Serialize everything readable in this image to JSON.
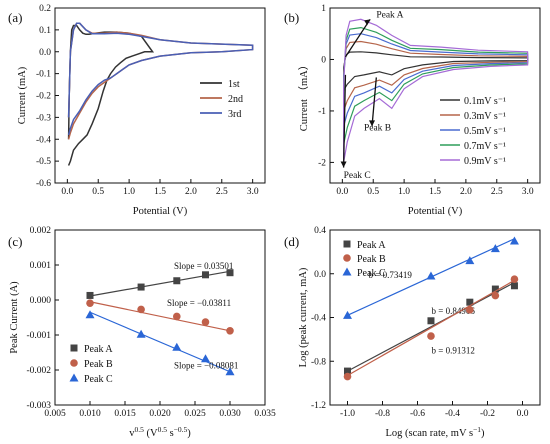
{
  "chart_data": [
    {
      "panel": "(a)",
      "type": "line",
      "xlabel": "Potential (V)",
      "ylabel": "Current (mA)",
      "xlim": [
        -0.2,
        3.2
      ],
      "ylim": [
        -0.6,
        0.2
      ],
      "xticks": [
        "0.0",
        "0.5",
        "1.0",
        "1.5",
        "2.0",
        "2.5",
        "3.0"
      ],
      "yticks": [
        "-0.6",
        "-0.5",
        "-0.4",
        "-0.3",
        "-0.2",
        "-0.1",
        "0.0",
        "0.1",
        "0.2"
      ],
      "legend_position": "center-right",
      "series": [
        {
          "name": "1st",
          "color": "#333333",
          "x": [
            0.02,
            0.05,
            0.1,
            0.18,
            0.25,
            0.32,
            0.4,
            0.5,
            0.58,
            0.64,
            0.7,
            0.78,
            0.86,
            0.95,
            1.05,
            1.15,
            1.25,
            1.38,
            1.2,
            1.0,
            0.8,
            0.6,
            0.45,
            0.35,
            0.3,
            0.25,
            0.2,
            0.15,
            0.1,
            0.07,
            0.05,
            0.03,
            0.02
          ],
          "y": [
            -0.52,
            -0.5,
            -0.45,
            -0.42,
            -0.4,
            -0.38,
            -0.33,
            -0.26,
            -0.18,
            -0.13,
            -0.1,
            -0.07,
            -0.05,
            -0.03,
            -0.02,
            -0.01,
            0.0,
            0.0,
            0.07,
            0.085,
            0.09,
            0.09,
            0.085,
            0.08,
            0.08,
            0.085,
            0.1,
            0.12,
            0.12,
            0.1,
            0.0,
            -0.2,
            -0.4
          ]
        },
        {
          "name": "2nd",
          "color": "#b5654a",
          "x": [
            0.02,
            0.05,
            0.1,
            0.2,
            0.3,
            0.4,
            0.5,
            0.6,
            0.7,
            0.75,
            0.8,
            0.9,
            1.0,
            1.2,
            1.5,
            2.0,
            2.5,
            3.0,
            3.0,
            2.5,
            2.0,
            1.5,
            1.2,
            1.0,
            0.8,
            0.6,
            0.4,
            0.3,
            0.2,
            0.15,
            0.1,
            0.05,
            0.02
          ],
          "y": [
            -0.4,
            -0.37,
            -0.33,
            -0.28,
            -0.23,
            -0.19,
            -0.16,
            -0.14,
            -0.12,
            -0.11,
            -0.1,
            -0.08,
            -0.06,
            -0.04,
            -0.02,
            -0.005,
            0.0,
            0.01,
            0.03,
            0.035,
            0.04,
            0.055,
            0.075,
            0.085,
            0.09,
            0.085,
            0.085,
            0.1,
            0.13,
            0.13,
            0.1,
            0.0,
            -0.3
          ]
        },
        {
          "name": "3rd",
          "color": "#4a5fb5",
          "x": [
            0.02,
            0.05,
            0.1,
            0.2,
            0.3,
            0.4,
            0.5,
            0.6,
            0.7,
            0.75,
            0.8,
            0.9,
            1.0,
            1.2,
            1.5,
            2.0,
            2.5,
            3.0,
            3.0,
            2.5,
            2.0,
            1.5,
            1.2,
            1.0,
            0.8,
            0.6,
            0.4,
            0.3,
            0.2,
            0.15,
            0.1,
            0.05,
            0.02
          ],
          "y": [
            -0.38,
            -0.35,
            -0.31,
            -0.27,
            -0.22,
            -0.18,
            -0.15,
            -0.13,
            -0.12,
            -0.11,
            -0.1,
            -0.08,
            -0.06,
            -0.04,
            -0.02,
            -0.005,
            0.0,
            0.01,
            0.03,
            0.035,
            0.04,
            0.055,
            0.07,
            0.08,
            0.085,
            0.082,
            0.082,
            0.1,
            0.13,
            0.13,
            0.1,
            0.0,
            -0.3
          ]
        }
      ]
    },
    {
      "panel": "(b)",
      "type": "line",
      "xlabel": "Potential (V)",
      "ylabel": "Current （mA）",
      "xlim": [
        -0.2,
        3.2
      ],
      "ylim": [
        -2.4,
        1.0
      ],
      "xticks": [
        "0.0",
        "0.5",
        "1.0",
        "1.5",
        "2.0",
        "2.5",
        "3.0"
      ],
      "yticks": [
        "-2",
        "-1",
        "0",
        "1"
      ],
      "legend_position": "bottom-right",
      "annotations": [
        "Peak A",
        "Peak B",
        "Peak C"
      ],
      "series": [
        {
          "name": "0.1mV s⁻¹",
          "color": "#333333",
          "peak_a": 0.15,
          "peak_b": -0.3,
          "peak_c": -0.6,
          "tail": 0.03
        },
        {
          "name": "0.3mV s⁻¹",
          "color": "#b5654a",
          "peak_a": 0.35,
          "peak_b": -0.5,
          "peak_c": -1.0,
          "tail": 0.06
        },
        {
          "name": "0.5mV s⁻¹",
          "color": "#4a6bd0",
          "peak_a": 0.5,
          "peak_b": -0.65,
          "peak_c": -1.3,
          "tail": 0.09
        },
        {
          "name": "0.7mV s⁻¹",
          "color": "#2e9e5a",
          "peak_a": 0.62,
          "peak_b": -0.8,
          "peak_c": -1.65,
          "tail": 0.12
        },
        {
          "name": "0.9mV s⁻¹",
          "color": "#a56bd6",
          "peak_a": 0.78,
          "peak_b": -0.95,
          "peak_c": -2.0,
          "tail": 0.15
        }
      ]
    },
    {
      "panel": "(c)",
      "type": "scatter",
      "xlabel": "v⁰·⁵ (V⁰·⁵ s⁻⁰·⁵)",
      "xlabel_parts": {
        "base": "v",
        "sup": "0.5",
        "unit_a": " (V",
        "unit_sup1": "0.5",
        "unit_b": " s",
        "unit_sup2": "−0.5",
        "unit_c": ")"
      },
      "ylabel": "Peak Current (A)",
      "xlim": [
        0.005,
        0.035
      ],
      "ylim": [
        -0.003,
        0.002
      ],
      "xticks": [
        "0.005",
        "0.010",
        "0.015",
        "0.020",
        "0.025",
        "0.030",
        "0.035"
      ],
      "yticks": [
        "-0.003",
        "-0.002",
        "-0.001",
        "0.000",
        "0.001",
        "0.002"
      ],
      "legend_position": "bottom-left",
      "x": [
        0.01,
        0.0173,
        0.0224,
        0.0265,
        0.03
      ],
      "series": [
        {
          "name": "Peak A",
          "color": "#444444",
          "marker": "square",
          "values": [
            0.00013,
            0.00037,
            0.00055,
            0.00072,
            0.00078
          ],
          "fit": [
            0.000115,
            0.00082
          ],
          "slope_label": "Slope = 0.03501"
        },
        {
          "name": "Peak B",
          "color": "#c0604a",
          "marker": "circle",
          "values": [
            -9e-05,
            -0.00027,
            -0.00047,
            -0.00063,
            -0.00088
          ],
          "fit": [
            -5e-05,
            -0.00088
          ],
          "slope_label": "Slope = −0.03811"
        },
        {
          "name": "Peak C",
          "color": "#2a66d6",
          "marker": "triangle",
          "values": [
            -0.00042,
            -0.00098,
            -0.00135,
            -0.00168,
            -0.00205
          ],
          "fit": [
            -0.00035,
            -0.00205
          ],
          "slope_label": "Slope = −0.08081"
        }
      ]
    },
    {
      "panel": "(d)",
      "type": "scatter",
      "xlabel": "Log (scan rate, mV s⁻¹)",
      "xlabel_parts": {
        "main": "Log (scan rate, mV s",
        "sup": "−1",
        "end": ")"
      },
      "ylabel": "Log (peak current, mA)",
      "xlim": [
        -1.1,
        0.1
      ],
      "ylim": [
        -1.2,
        0.4
      ],
      "xticks": [
        "-1.0",
        "-0.8",
        "-0.6",
        "-0.4",
        "-0.2",
        "0.0"
      ],
      "xtick_values": [
        -1.0,
        -0.8,
        -0.6,
        -0.4,
        -0.2,
        0.0
      ],
      "yticks": [
        "-1.2",
        "-0.8",
        "-0.4",
        "0.0",
        "0.4"
      ],
      "ytick_values": [
        -1.2,
        -0.8,
        -0.4,
        0.0,
        0.4
      ],
      "legend_position": "top-left",
      "x": [
        -1.0,
        -0.523,
        -0.301,
        -0.155,
        -0.046
      ],
      "series": [
        {
          "name": "Peak A",
          "color": "#444444",
          "marker": "square",
          "values": [
            -0.89,
            -0.43,
            -0.26,
            -0.14,
            -0.11
          ],
          "fit": [
            -0.89,
            -0.08
          ],
          "slope_label": "b = 0.84906"
        },
        {
          "name": "Peak B",
          "color": "#c0604a",
          "marker": "circle",
          "values": [
            -0.94,
            -0.57,
            -0.33,
            -0.2,
            -0.05
          ],
          "fit": [
            -0.93,
            -0.06
          ],
          "slope_label": "b = 0.91312"
        },
        {
          "name": "Peak C",
          "color": "#2a66d6",
          "marker": "triangle",
          "values": [
            -0.38,
            -0.02,
            0.12,
            0.23,
            0.3
          ],
          "fit": [
            -0.38,
            0.32
          ],
          "slope_label": "b = 0.73419"
        }
      ]
    }
  ]
}
